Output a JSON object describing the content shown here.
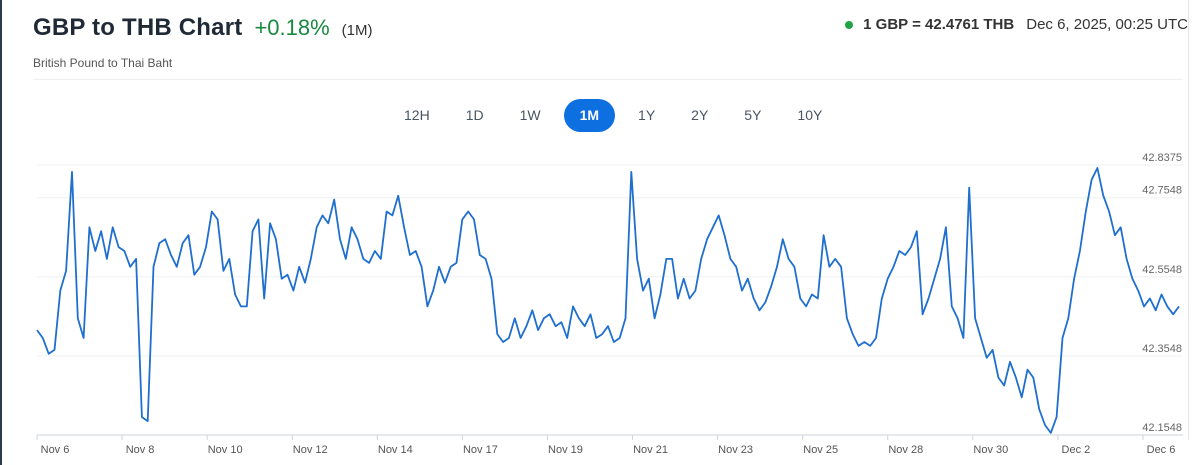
{
  "header": {
    "title": "GBP to THB Chart",
    "change": "+0.18%",
    "period": "(1M)",
    "subtitle": "British Pound to Thai Baht",
    "rate": "1 GBP = 42.4761 THB",
    "timestamp": "Dec 6, 2025, 00:25 UTC",
    "colors": {
      "positive": "#188a3f",
      "live": "#1fa547",
      "accent": "#0d6fe0"
    }
  },
  "ranges": {
    "items": [
      "12H",
      "1D",
      "1W",
      "1M",
      "1Y",
      "2Y",
      "5Y",
      "10Y"
    ],
    "active": "1M"
  },
  "chart_data": {
    "type": "line",
    "title": "",
    "xlabel": "",
    "ylabel": "",
    "line_color": "#1f6fcf",
    "grid": true,
    "y_ticks": [
      "42.8375",
      "42.7548",
      "42.5548",
      "42.3548",
      "42.1548"
    ],
    "ylim": [
      42.1548,
      42.8375
    ],
    "x_ticks": [
      "Nov 6",
      "Nov 8",
      "Nov 10",
      "Nov 12",
      "Nov 14",
      "Nov 17",
      "Nov 19",
      "Nov 21",
      "Nov 23",
      "Nov 25",
      "Nov 28",
      "Nov 30",
      "Dec 2",
      "Dec 6"
    ],
    "series": [
      {
        "values": [
          42.42,
          42.4,
          42.36,
          42.37,
          42.52,
          42.57,
          42.82,
          42.45,
          42.4,
          42.68,
          42.62,
          42.67,
          42.6,
          42.68,
          42.63,
          42.62,
          42.58,
          42.6,
          42.2,
          42.19,
          42.58,
          42.64,
          42.65,
          42.61,
          42.58,
          42.64,
          42.66,
          42.56,
          42.58,
          42.63,
          42.72,
          42.7,
          42.57,
          42.6,
          42.51,
          42.48,
          42.48,
          42.67,
          42.7,
          42.5,
          42.69,
          42.65,
          42.55,
          42.56,
          42.52,
          42.58,
          42.54,
          42.6,
          42.68,
          42.71,
          42.69,
          42.75,
          42.65,
          42.6,
          42.68,
          42.65,
          42.6,
          42.59,
          42.62,
          42.6,
          42.72,
          42.71,
          42.76,
          42.68,
          42.61,
          42.62,
          42.58,
          42.48,
          42.52,
          42.58,
          42.54,
          42.58,
          42.59,
          42.7,
          42.72,
          42.7,
          42.61,
          42.6,
          42.55,
          42.41,
          42.39,
          42.4,
          42.45,
          42.4,
          42.43,
          42.47,
          42.42,
          42.45,
          42.46,
          42.43,
          42.44,
          42.4,
          42.48,
          42.45,
          42.43,
          42.46,
          42.4,
          42.41,
          42.43,
          42.39,
          42.4,
          42.45,
          42.82,
          42.6,
          42.52,
          42.55,
          42.45,
          42.51,
          42.6,
          42.6,
          42.5,
          42.55,
          42.5,
          42.52,
          42.6,
          42.65,
          42.68,
          42.71,
          42.66,
          42.6,
          42.58,
          42.52,
          42.55,
          42.5,
          42.47,
          42.49,
          42.53,
          42.58,
          42.65,
          42.6,
          42.58,
          42.5,
          42.48,
          42.51,
          42.5,
          42.66,
          42.58,
          42.6,
          42.58,
          42.45,
          42.41,
          42.38,
          42.39,
          42.38,
          42.4,
          42.5,
          42.55,
          42.58,
          42.62,
          42.61,
          42.63,
          42.67,
          42.46,
          42.5,
          42.55,
          42.6,
          42.68,
          42.48,
          42.45,
          42.4,
          42.78,
          42.45,
          42.4,
          42.35,
          42.37,
          42.3,
          42.28,
          42.34,
          42.3,
          42.25,
          42.32,
          42.3,
          42.22,
          42.18,
          42.16,
          42.2,
          42.4,
          42.45,
          42.55,
          42.62,
          42.72,
          42.8,
          42.83,
          42.76,
          42.72,
          42.66,
          42.68,
          42.6,
          42.55,
          42.52,
          42.48,
          42.5,
          42.47,
          42.51,
          42.48,
          42.46,
          42.48
        ]
      }
    ]
  }
}
